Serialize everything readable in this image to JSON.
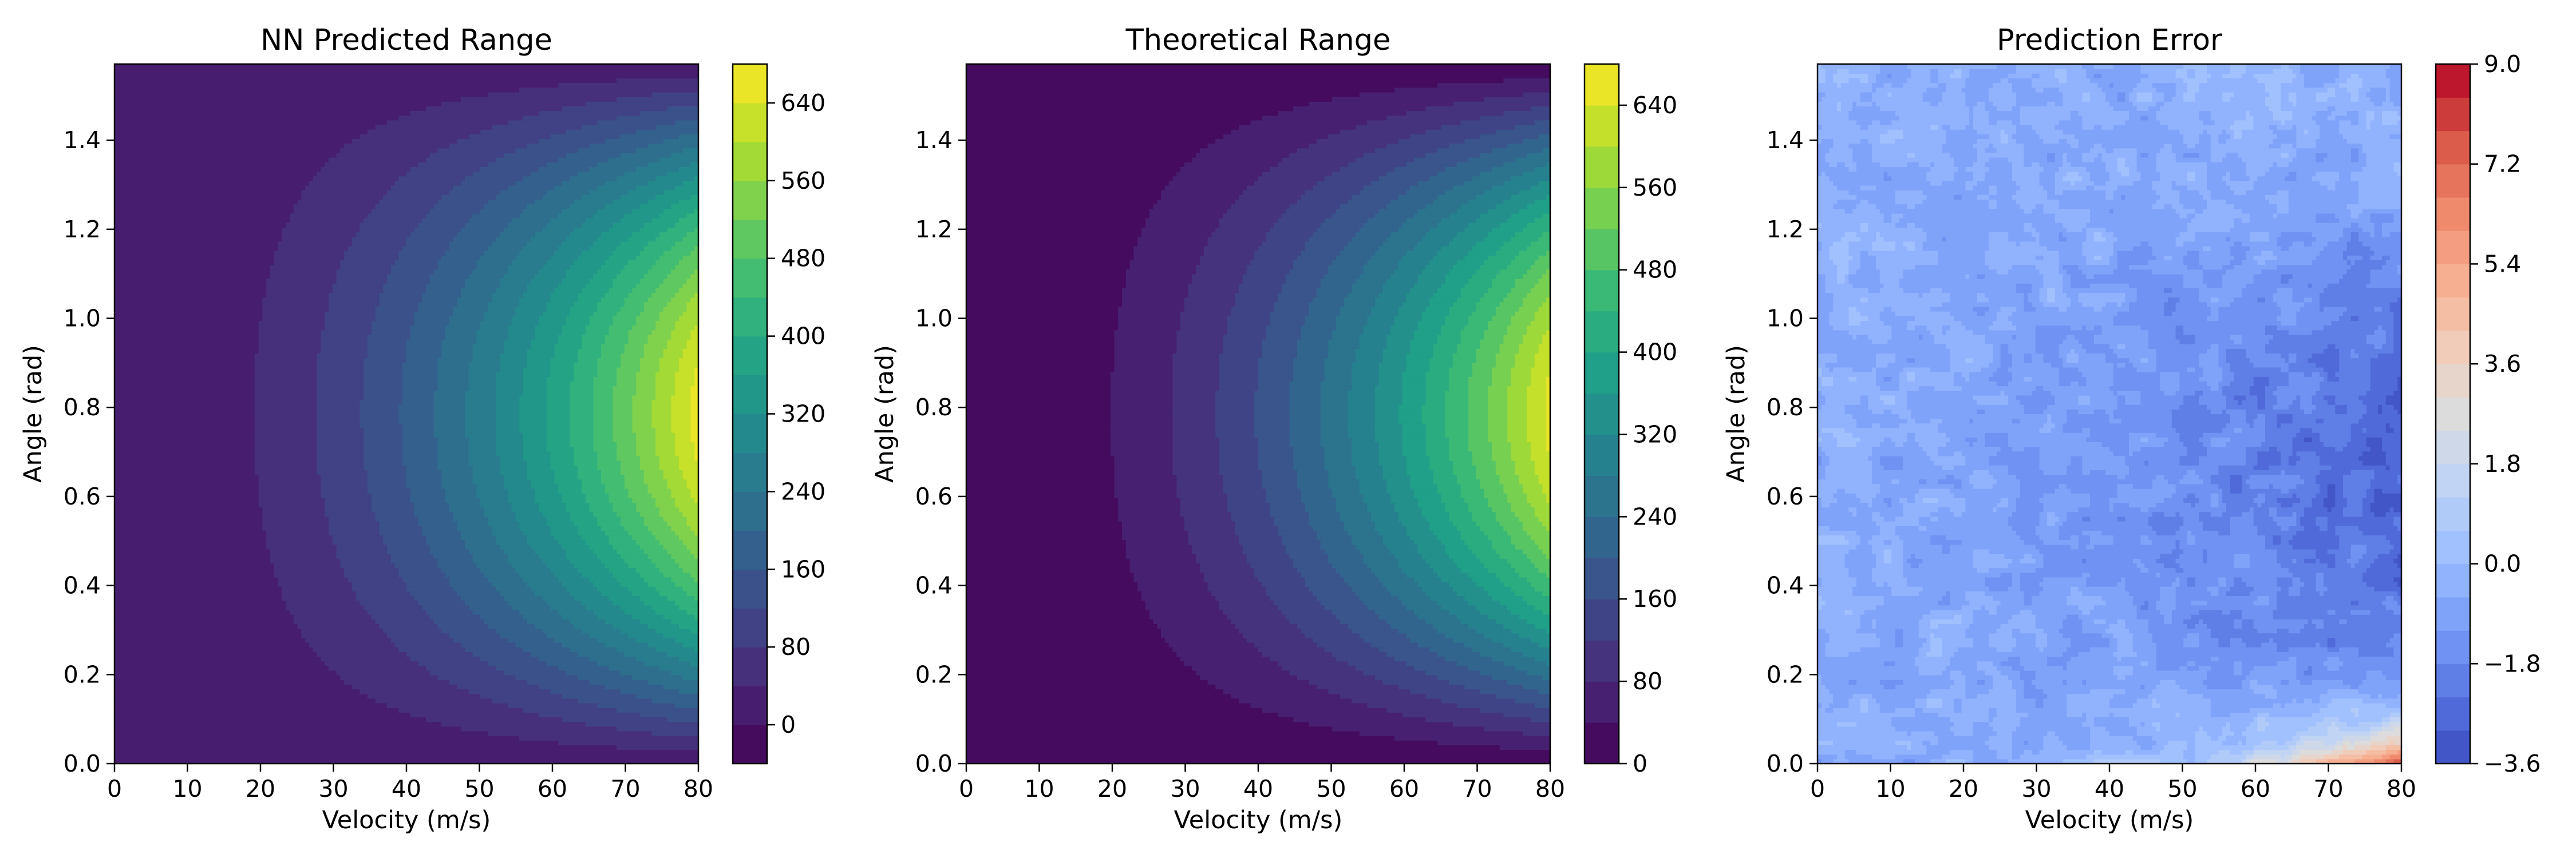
{
  "figure": {
    "panel_count": 3
  },
  "chart_data": [
    {
      "type": "heatmap",
      "subtype": "filled-contour",
      "title": "NN Predicted Range",
      "xlabel": "Velocity (m/s)",
      "ylabel": "Angle (rad)",
      "xlim": [
        0,
        80
      ],
      "ylim": [
        0,
        1.571
      ],
      "x_ticks": [
        0,
        10,
        20,
        30,
        40,
        50,
        60,
        70,
        80
      ],
      "y_ticks": [
        0.0,
        0.2,
        0.4,
        0.6,
        0.8,
        1.0,
        1.2,
        1.4
      ],
      "y_tick_labels": [
        "0.0",
        "0.2",
        "0.4",
        "0.6",
        "0.8",
        "1.0",
        "1.2",
        "1.4"
      ],
      "colormap": "viridis",
      "colormap_stops": [
        "#440154",
        "#482878",
        "#3e4989",
        "#31688e",
        "#26828e",
        "#1f9e89",
        "#35b779",
        "#6ece58",
        "#b5de2b",
        "#fde725"
      ],
      "colorbar": {
        "min": -40,
        "max": 680,
        "ticks": [
          0,
          80,
          160,
          240,
          320,
          400,
          480,
          560,
          640
        ],
        "levels": 18
      },
      "field": "R = v^2 * sin(2*theta) / 9.81 plus small model error",
      "value_range": [
        -10,
        660
      ],
      "grid": false,
      "legend": "none"
    },
    {
      "type": "heatmap",
      "subtype": "filled-contour",
      "title": "Theoretical Range",
      "xlabel": "Velocity (m/s)",
      "ylabel": "Angle (rad)",
      "xlim": [
        0,
        80
      ],
      "ylim": [
        0,
        1.571
      ],
      "x_ticks": [
        0,
        10,
        20,
        30,
        40,
        50,
        60,
        70,
        80
      ],
      "y_ticks": [
        0.0,
        0.2,
        0.4,
        0.6,
        0.8,
        1.0,
        1.2,
        1.4
      ],
      "y_tick_labels": [
        "0.0",
        "0.2",
        "0.4",
        "0.6",
        "0.8",
        "1.0",
        "1.2",
        "1.4"
      ],
      "colormap": "viridis",
      "colormap_stops": [
        "#440154",
        "#482878",
        "#3e4989",
        "#31688e",
        "#26828e",
        "#1f9e89",
        "#35b779",
        "#6ece58",
        "#b5de2b",
        "#fde725"
      ],
      "colorbar": {
        "min": 0,
        "max": 680,
        "ticks": [
          0,
          80,
          160,
          240,
          320,
          400,
          480,
          560,
          640
        ],
        "levels": 17
      },
      "field": "R = v^2 * sin(2*theta) / 9.81",
      "value_range": [
        0,
        652
      ],
      "grid": false,
      "legend": "none"
    },
    {
      "type": "heatmap",
      "subtype": "filled-contour",
      "title": "Prediction Error",
      "xlabel": "Velocity (m/s)",
      "ylabel": "Angle (rad)",
      "xlim": [
        0,
        80
      ],
      "ylim": [
        0,
        1.571
      ],
      "x_ticks": [
        0,
        10,
        20,
        30,
        40,
        50,
        60,
        70,
        80
      ],
      "y_ticks": [
        0.0,
        0.2,
        0.4,
        0.6,
        0.8,
        1.0,
        1.2,
        1.4
      ],
      "y_tick_labels": [
        "0.0",
        "0.2",
        "0.4",
        "0.6",
        "0.8",
        "1.0",
        "1.2",
        "1.4"
      ],
      "colormap": "coolwarm",
      "colormap_stops": [
        "#3b4cc0",
        "#5977e3",
        "#7b9ff9",
        "#9ebeff",
        "#c0d4f5",
        "#dddcdc",
        "#f2cbb7",
        "#f7ac8e",
        "#ee8468",
        "#d65244",
        "#b40426"
      ],
      "colorbar": {
        "min": -3.6,
        "max": 9.0,
        "ticks": [
          -3.6,
          -1.8,
          0.0,
          1.8,
          3.6,
          5.4,
          7.2,
          9.0
        ],
        "tick_labels": [
          "−3.6",
          "−1.8",
          "0.0",
          "1.8",
          "3.6",
          "5.4",
          "7.2",
          "9.0"
        ],
        "levels": 21
      },
      "field": "NN predicted minus theoretical: about -0.5 at low velocity, about -3.0 near 70-80 m/s and mid angles, rising to about +8 at 80 m/s and angles near 0",
      "value_range": [
        -3.3,
        8.5
      ],
      "grid": false,
      "legend": "none"
    }
  ]
}
